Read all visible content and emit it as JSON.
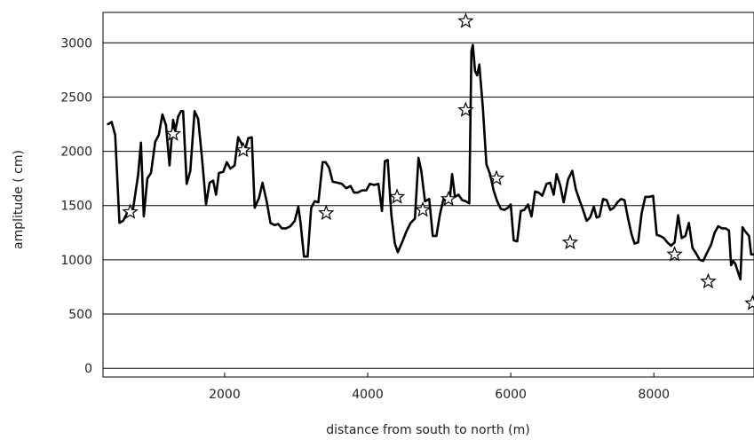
{
  "chart_data": {
    "type": "line",
    "title": "",
    "xlabel": "distance from south to north (m)",
    "ylabel": "amplitude ( cm)",
    "xlim": [
      300,
      9400
    ],
    "ylim": [
      -80,
      3280
    ],
    "x_ticks": [
      2000,
      4000,
      6000,
      8000
    ],
    "y_ticks": [
      0,
      500,
      1000,
      1500,
      2000,
      2500,
      3000
    ],
    "grid": "horizontal",
    "legend": "none",
    "colors": {
      "line": "#000000",
      "marker_stroke": "#000000",
      "marker_fill": "#ffffff",
      "grid": "#000000"
    },
    "series": [
      {
        "kind": "line",
        "points": [
          [
            370,
            2250
          ],
          [
            420,
            2270
          ],
          [
            470,
            2150
          ],
          [
            530,
            1340
          ],
          [
            580,
            1360
          ],
          [
            650,
            1450
          ],
          [
            720,
            1470
          ],
          [
            790,
            1780
          ],
          [
            830,
            2080
          ],
          [
            870,
            1400
          ],
          [
            920,
            1750
          ],
          [
            970,
            1800
          ],
          [
            1030,
            2090
          ],
          [
            1080,
            2150
          ],
          [
            1130,
            2340
          ],
          [
            1180,
            2240
          ],
          [
            1230,
            1870
          ],
          [
            1280,
            2290
          ],
          [
            1310,
            2190
          ],
          [
            1350,
            2320
          ],
          [
            1390,
            2370
          ],
          [
            1420,
            2370
          ],
          [
            1470,
            1700
          ],
          [
            1520,
            1820
          ],
          [
            1580,
            2370
          ],
          [
            1630,
            2300
          ],
          [
            1680,
            1960
          ],
          [
            1740,
            1510
          ],
          [
            1790,
            1710
          ],
          [
            1840,
            1730
          ],
          [
            1880,
            1600
          ],
          [
            1920,
            1800
          ],
          [
            1980,
            1810
          ],
          [
            2030,
            1900
          ],
          [
            2080,
            1840
          ],
          [
            2140,
            1870
          ],
          [
            2190,
            2130
          ],
          [
            2230,
            2080
          ],
          [
            2280,
            2000
          ],
          [
            2330,
            2120
          ],
          [
            2380,
            2130
          ],
          [
            2420,
            1480
          ],
          [
            2480,
            1570
          ],
          [
            2530,
            1710
          ],
          [
            2590,
            1530
          ],
          [
            2640,
            1340
          ],
          [
            2700,
            1320
          ],
          [
            2750,
            1330
          ],
          [
            2800,
            1290
          ],
          [
            2860,
            1290
          ],
          [
            2920,
            1310
          ],
          [
            2980,
            1360
          ],
          [
            3030,
            1490
          ],
          [
            3060,
            1350
          ],
          [
            3110,
            1030
          ],
          [
            3160,
            1030
          ],
          [
            3210,
            1480
          ],
          [
            3260,
            1540
          ],
          [
            3310,
            1530
          ],
          [
            3370,
            1900
          ],
          [
            3410,
            1900
          ],
          [
            3460,
            1850
          ],
          [
            3510,
            1720
          ],
          [
            3580,
            1710
          ],
          [
            3640,
            1700
          ],
          [
            3700,
            1660
          ],
          [
            3760,
            1680
          ],
          [
            3810,
            1620
          ],
          [
            3860,
            1620
          ],
          [
            3920,
            1640
          ],
          [
            3980,
            1640
          ],
          [
            4030,
            1700
          ],
          [
            4090,
            1690
          ],
          [
            4150,
            1700
          ],
          [
            4200,
            1450
          ],
          [
            4240,
            1910
          ],
          [
            4280,
            1920
          ],
          [
            4330,
            1420
          ],
          [
            4380,
            1150
          ],
          [
            4420,
            1070
          ],
          [
            4480,
            1160
          ],
          [
            4540,
            1260
          ],
          [
            4600,
            1340
          ],
          [
            4660,
            1380
          ],
          [
            4710,
            1940
          ],
          [
            4750,
            1820
          ],
          [
            4800,
            1540
          ],
          [
            4860,
            1560
          ],
          [
            4910,
            1220
          ],
          [
            4960,
            1220
          ],
          [
            5010,
            1420
          ],
          [
            5060,
            1560
          ],
          [
            5100,
            1540
          ],
          [
            5150,
            1580
          ],
          [
            5180,
            1790
          ],
          [
            5220,
            1580
          ],
          [
            5270,
            1600
          ],
          [
            5320,
            1550
          ],
          [
            5370,
            1540
          ],
          [
            5420,
            1520
          ],
          [
            5450,
            2920
          ],
          [
            5470,
            2980
          ],
          [
            5500,
            2740
          ],
          [
            5530,
            2700
          ],
          [
            5560,
            2800
          ],
          [
            5610,
            2400
          ],
          [
            5660,
            1880
          ],
          [
            5710,
            1790
          ],
          [
            5760,
            1640
          ],
          [
            5810,
            1540
          ],
          [
            5860,
            1470
          ],
          [
            5910,
            1460
          ],
          [
            5960,
            1480
          ],
          [
            6000,
            1510
          ],
          [
            6040,
            1180
          ],
          [
            6090,
            1170
          ],
          [
            6140,
            1450
          ],
          [
            6190,
            1460
          ],
          [
            6240,
            1510
          ],
          [
            6290,
            1400
          ],
          [
            6340,
            1630
          ],
          [
            6390,
            1620
          ],
          [
            6440,
            1590
          ],
          [
            6500,
            1700
          ],
          [
            6550,
            1710
          ],
          [
            6600,
            1600
          ],
          [
            6640,
            1790
          ],
          [
            6690,
            1690
          ],
          [
            6740,
            1530
          ],
          [
            6800,
            1740
          ],
          [
            6860,
            1820
          ],
          [
            6910,
            1650
          ],
          [
            6960,
            1550
          ],
          [
            7010,
            1460
          ],
          [
            7060,
            1360
          ],
          [
            7110,
            1390
          ],
          [
            7160,
            1490
          ],
          [
            7200,
            1390
          ],
          [
            7240,
            1400
          ],
          [
            7290,
            1560
          ],
          [
            7340,
            1550
          ],
          [
            7390,
            1460
          ],
          [
            7440,
            1480
          ],
          [
            7490,
            1530
          ],
          [
            7540,
            1560
          ],
          [
            7590,
            1550
          ],
          [
            7640,
            1380
          ],
          [
            7690,
            1230
          ],
          [
            7730,
            1150
          ],
          [
            7780,
            1160
          ],
          [
            7830,
            1430
          ],
          [
            7880,
            1580
          ],
          [
            7940,
            1580
          ],
          [
            7990,
            1590
          ],
          [
            8040,
            1230
          ],
          [
            8090,
            1220
          ],
          [
            8140,
            1200
          ],
          [
            8190,
            1160
          ],
          [
            8240,
            1130
          ],
          [
            8290,
            1160
          ],
          [
            8340,
            1410
          ],
          [
            8390,
            1200
          ],
          [
            8440,
            1220
          ],
          [
            8490,
            1340
          ],
          [
            8540,
            1110
          ],
          [
            8590,
            1060
          ],
          [
            8640,
            1000
          ],
          [
            8690,
            990
          ],
          [
            8740,
            1060
          ],
          [
            8800,
            1140
          ],
          [
            8850,
            1250
          ],
          [
            8900,
            1310
          ],
          [
            8950,
            1290
          ],
          [
            9000,
            1290
          ],
          [
            9050,
            1270
          ],
          [
            9080,
            950
          ],
          [
            9110,
            990
          ],
          [
            9140,
            960
          ],
          [
            9180,
            880
          ],
          [
            9210,
            820
          ],
          [
            9240,
            1300
          ],
          [
            9280,
            1260
          ],
          [
            9330,
            1220
          ],
          [
            9360,
            1050
          ],
          [
            9400,
            1050
          ]
        ]
      },
      {
        "kind": "scatter",
        "marker": "star",
        "points": [
          [
            680,
            1440
          ],
          [
            1280,
            2160
          ],
          [
            2260,
            2010
          ],
          [
            3420,
            1430
          ],
          [
            4410,
            1580
          ],
          [
            4770,
            1460
          ],
          [
            5130,
            1560
          ],
          [
            5370,
            3200
          ],
          [
            5370,
            2380
          ],
          [
            5800,
            1750
          ],
          [
            6830,
            1160
          ],
          [
            8290,
            1050
          ],
          [
            8760,
            800
          ],
          [
            9380,
            600
          ]
        ]
      }
    ]
  }
}
